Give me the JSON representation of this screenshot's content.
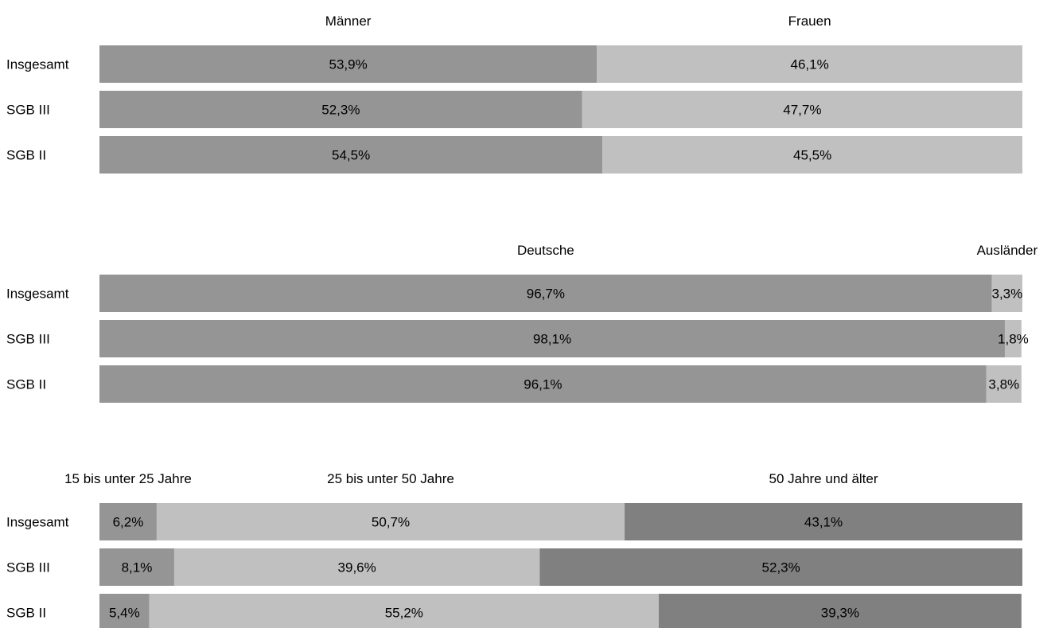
{
  "chart_data": [
    {
      "type": "bar",
      "stacked": true,
      "orientation": "horizontal",
      "normalized": "percent",
      "categories": [
        "Insgesamt",
        "SGB III",
        "SGB II"
      ],
      "series": [
        {
          "name": "Männer",
          "values": [
            53.9,
            52.3,
            54.5
          ],
          "labels": [
            "53,9%",
            "52,3%",
            "54,5%"
          ],
          "color": "#959595"
        },
        {
          "name": "Frauen",
          "values": [
            46.1,
            47.7,
            45.5
          ],
          "labels": [
            "46,1%",
            "47,7%",
            "45,5%"
          ],
          "color": "#c0c0c0"
        }
      ],
      "legend": "top"
    },
    {
      "type": "bar",
      "stacked": true,
      "orientation": "horizontal",
      "normalized": "percent",
      "categories": [
        "Insgesamt",
        "SGB III",
        "SGB II"
      ],
      "series": [
        {
          "name": "Deutsche",
          "values": [
            96.7,
            98.1,
            96.1
          ],
          "labels": [
            "96,7%",
            "98,1%",
            "96,1%"
          ],
          "color": "#959595"
        },
        {
          "name": "Ausländer",
          "values": [
            3.3,
            1.8,
            3.8
          ],
          "labels": [
            "3,3%",
            "1,8%",
            "3,8%"
          ],
          "color": "#c0c0c0"
        }
      ],
      "legend": "top"
    },
    {
      "type": "bar",
      "stacked": true,
      "orientation": "horizontal",
      "normalized": "percent",
      "categories": [
        "Insgesamt",
        "SGB III",
        "SGB II"
      ],
      "series": [
        {
          "name": "15 bis unter 25 Jahre",
          "values": [
            6.2,
            8.1,
            5.4
          ],
          "labels": [
            "6,2%",
            "8,1%",
            "5,4%"
          ],
          "color": "#959595"
        },
        {
          "name": "25 bis unter 50 Jahre",
          "values": [
            50.7,
            39.6,
            55.2
          ],
          "labels": [
            "50,7%",
            "39,6%",
            "55,2%"
          ],
          "color": "#c0c0c0"
        },
        {
          "name": "50 Jahre und älter",
          "values": [
            43.1,
            52.3,
            39.3
          ],
          "labels": [
            "43,1%",
            "52,3%",
            "39,3%"
          ],
          "color": "#808080"
        }
      ],
      "legend": "top"
    }
  ]
}
